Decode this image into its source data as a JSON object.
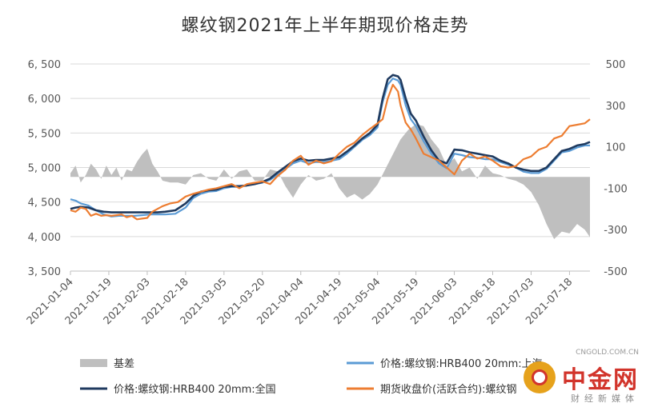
{
  "chart_data": {
    "type": "line",
    "title": "螺纹钢2021年上半年期现价格走势",
    "x_ticks": [
      "2021-01-04",
      "2021-01-19",
      "2021-02-03",
      "2021-02-18",
      "2021-03-05",
      "2021-03-20",
      "2021-04-04",
      "2021-04-19",
      "2021-05-04",
      "2021-05-19",
      "2021-06-03",
      "2021-06-18",
      "2021-07-03",
      "2021-07-18"
    ],
    "y_left": {
      "min": 3500,
      "max": 6500,
      "ticks": [
        "3, 500",
        "4, 000",
        "4, 500",
        "5, 000",
        "5, 500",
        "6, 000",
        "6, 500"
      ]
    },
    "y_right": {
      "min": -500,
      "max": 600,
      "ticks": [
        "-500",
        "-300",
        "-100",
        "100",
        "300",
        "500"
      ]
    },
    "x_range": [
      "2021-01-04",
      "2021-07-26"
    ],
    "series": [
      {
        "name": "基差",
        "kind": "area",
        "axis": "right",
        "color": "#bfbfbf",
        "x": [
          "2021-01-04",
          "2021-01-06",
          "2021-01-08",
          "2021-01-10",
          "2021-01-12",
          "2021-01-14",
          "2021-01-16",
          "2021-01-18",
          "2021-01-20",
          "2021-01-22",
          "2021-01-24",
          "2021-01-26",
          "2021-01-28",
          "2021-01-30",
          "2021-02-01",
          "2021-02-03",
          "2021-02-05",
          "2021-02-07",
          "2021-02-09",
          "2021-02-12",
          "2021-02-15",
          "2021-02-18",
          "2021-02-21",
          "2021-02-24",
          "2021-02-27",
          "2021-03-02",
          "2021-03-05",
          "2021-03-08",
          "2021-03-11",
          "2021-03-14",
          "2021-03-17",
          "2021-03-20",
          "2021-03-23",
          "2021-03-26",
          "2021-03-29",
          "2021-04-01",
          "2021-04-04",
          "2021-04-07",
          "2021-04-10",
          "2021-04-13",
          "2021-04-16",
          "2021-04-19",
          "2021-04-22",
          "2021-04-25",
          "2021-04-28",
          "2021-05-01",
          "2021-05-04",
          "2021-05-07",
          "2021-05-10",
          "2021-05-13",
          "2021-05-16",
          "2021-05-19",
          "2021-05-22",
          "2021-05-25",
          "2021-05-28",
          "2021-05-31",
          "2021-06-03",
          "2021-06-06",
          "2021-06-09",
          "2021-06-12",
          "2021-06-15",
          "2021-06-18",
          "2021-06-21",
          "2021-06-24",
          "2021-06-27",
          "2021-06-30",
          "2021-07-03",
          "2021-07-06",
          "2021-07-09",
          "2021-07-12",
          "2021-07-15",
          "2021-07-18",
          "2021-07-21",
          "2021-07-24",
          "2021-07-26"
        ],
        "values": [
          20,
          60,
          -30,
          10,
          70,
          40,
          -10,
          60,
          10,
          50,
          -20,
          40,
          30,
          80,
          120,
          150,
          70,
          30,
          -20,
          -30,
          -30,
          -40,
          10,
          20,
          -10,
          -20,
          40,
          -10,
          30,
          40,
          -20,
          -20,
          40,
          30,
          -50,
          -110,
          -40,
          10,
          -20,
          -10,
          20,
          -60,
          -110,
          -90,
          -120,
          -90,
          -40,
          40,
          120,
          200,
          250,
          280,
          270,
          200,
          150,
          60,
          100,
          30,
          50,
          -10,
          60,
          20,
          10,
          -10,
          -20,
          -40,
          -80,
          -150,
          -250,
          -330,
          -290,
          -300,
          -250,
          -280,
          -320
        ]
      },
      {
        "name": "价格:螺纹钢:HRB400 20mm:上海",
        "kind": "line",
        "axis": "left",
        "color": "#5b9bd5",
        "x": [
          "2021-01-04",
          "2021-01-06",
          "2021-01-08",
          "2021-01-11",
          "2021-01-14",
          "2021-01-17",
          "2021-01-20",
          "2021-01-23",
          "2021-01-26",
          "2021-01-29",
          "2021-02-01",
          "2021-02-04",
          "2021-02-07",
          "2021-02-10",
          "2021-02-14",
          "2021-02-18",
          "2021-02-21",
          "2021-02-24",
          "2021-02-27",
          "2021-03-02",
          "2021-03-05",
          "2021-03-08",
          "2021-03-11",
          "2021-03-14",
          "2021-03-17",
          "2021-03-20",
          "2021-03-23",
          "2021-03-26",
          "2021-03-29",
          "2021-04-01",
          "2021-04-04",
          "2021-04-07",
          "2021-04-10",
          "2021-04-13",
          "2021-04-16",
          "2021-04-19",
          "2021-04-22",
          "2021-04-25",
          "2021-04-28",
          "2021-05-01",
          "2021-05-04",
          "2021-05-06",
          "2021-05-08",
          "2021-05-10",
          "2021-05-12",
          "2021-05-13",
          "2021-05-15",
          "2021-05-17",
          "2021-05-19",
          "2021-05-22",
          "2021-05-25",
          "2021-05-28",
          "2021-05-31",
          "2021-06-03",
          "2021-06-06",
          "2021-06-09",
          "2021-06-12",
          "2021-06-15",
          "2021-06-18",
          "2021-06-21",
          "2021-06-24",
          "2021-06-27",
          "2021-06-30",
          "2021-07-03",
          "2021-07-06",
          "2021-07-09",
          "2021-07-12",
          "2021-07-15",
          "2021-07-18",
          "2021-07-21",
          "2021-07-24",
          "2021-07-26"
        ],
        "values": [
          4540,
          4520,
          4480,
          4450,
          4380,
          4320,
          4290,
          4300,
          4300,
          4300,
          4310,
          4320,
          4320,
          4320,
          4330,
          4420,
          4560,
          4620,
          4650,
          4660,
          4700,
          4720,
          4720,
          4740,
          4760,
          4780,
          4820,
          4900,
          4980,
          5060,
          5100,
          5060,
          5080,
          5080,
          5100,
          5120,
          5200,
          5300,
          5400,
          5470,
          5580,
          5950,
          6200,
          6290,
          6260,
          6200,
          5900,
          5700,
          5600,
          5380,
          5200,
          5060,
          4990,
          5200,
          5180,
          5150,
          5140,
          5120,
          5120,
          5080,
          5040,
          5000,
          4940,
          4920,
          4920,
          4980,
          5100,
          5220,
          5240,
          5290,
          5320,
          5320
        ]
      },
      {
        "name": "价格:螺纹钢:HRB400 20mm:全国",
        "kind": "line",
        "axis": "left",
        "color": "#1f3a5f",
        "x": [
          "2021-01-04",
          "2021-01-06",
          "2021-01-08",
          "2021-01-11",
          "2021-01-14",
          "2021-01-17",
          "2021-01-20",
          "2021-01-23",
          "2021-01-26",
          "2021-01-29",
          "2021-02-01",
          "2021-02-04",
          "2021-02-07",
          "2021-02-10",
          "2021-02-14",
          "2021-02-18",
          "2021-02-21",
          "2021-02-24",
          "2021-02-27",
          "2021-03-02",
          "2021-03-05",
          "2021-03-08",
          "2021-03-11",
          "2021-03-14",
          "2021-03-17",
          "2021-03-20",
          "2021-03-23",
          "2021-03-26",
          "2021-03-29",
          "2021-04-01",
          "2021-04-04",
          "2021-04-07",
          "2021-04-10",
          "2021-04-13",
          "2021-04-16",
          "2021-04-19",
          "2021-04-22",
          "2021-04-25",
          "2021-04-28",
          "2021-05-01",
          "2021-05-04",
          "2021-05-06",
          "2021-05-08",
          "2021-05-10",
          "2021-05-12",
          "2021-05-13",
          "2021-05-15",
          "2021-05-17",
          "2021-05-19",
          "2021-05-22",
          "2021-05-25",
          "2021-05-28",
          "2021-05-31",
          "2021-06-03",
          "2021-06-06",
          "2021-06-09",
          "2021-06-12",
          "2021-06-15",
          "2021-06-18",
          "2021-06-21",
          "2021-06-24",
          "2021-06-27",
          "2021-06-30",
          "2021-07-03",
          "2021-07-06",
          "2021-07-09",
          "2021-07-12",
          "2021-07-15",
          "2021-07-18",
          "2021-07-21",
          "2021-07-24",
          "2021-07-26"
        ],
        "values": [
          4400,
          4420,
          4430,
          4420,
          4380,
          4360,
          4350,
          4350,
          4350,
          4350,
          4350,
          4350,
          4350,
          4360,
          4380,
          4480,
          4590,
          4650,
          4670,
          4680,
          4720,
          4730,
          4730,
          4740,
          4760,
          4790,
          4840,
          4930,
          5010,
          5090,
          5130,
          5100,
          5110,
          5110,
          5130,
          5150,
          5230,
          5320,
          5420,
          5500,
          5620,
          6000,
          6280,
          6340,
          6320,
          6270,
          6000,
          5780,
          5680,
          5450,
          5250,
          5100,
          5060,
          5260,
          5250,
          5220,
          5200,
          5180,
          5160,
          5100,
          5060,
          5000,
          4970,
          4950,
          4950,
          5000,
          5120,
          5240,
          5270,
          5320,
          5340,
          5370
        ]
      },
      {
        "name": "期货收盘价(活跃合约):螺纹钢",
        "kind": "line",
        "axis": "left",
        "color": "#ed7d31",
        "x": [
          "2021-01-04",
          "2021-01-06",
          "2021-01-08",
          "2021-01-10",
          "2021-01-12",
          "2021-01-14",
          "2021-01-16",
          "2021-01-18",
          "2021-01-20",
          "2021-01-22",
          "2021-01-24",
          "2021-01-26",
          "2021-01-28",
          "2021-01-30",
          "2021-02-01",
          "2021-02-03",
          "2021-02-05",
          "2021-02-07",
          "2021-02-09",
          "2021-02-12",
          "2021-02-15",
          "2021-02-18",
          "2021-02-21",
          "2021-02-24",
          "2021-02-27",
          "2021-03-02",
          "2021-03-05",
          "2021-03-08",
          "2021-03-11",
          "2021-03-14",
          "2021-03-17",
          "2021-03-20",
          "2021-03-23",
          "2021-03-26",
          "2021-03-29",
          "2021-04-01",
          "2021-04-04",
          "2021-04-07",
          "2021-04-10",
          "2021-04-13",
          "2021-04-16",
          "2021-04-19",
          "2021-04-22",
          "2021-04-25",
          "2021-04-28",
          "2021-05-01",
          "2021-05-04",
          "2021-05-06",
          "2021-05-08",
          "2021-05-10",
          "2021-05-12",
          "2021-05-13",
          "2021-05-15",
          "2021-05-17",
          "2021-05-19",
          "2021-05-22",
          "2021-05-25",
          "2021-05-28",
          "2021-05-31",
          "2021-06-03",
          "2021-06-06",
          "2021-06-09",
          "2021-06-12",
          "2021-06-15",
          "2021-06-18",
          "2021-06-21",
          "2021-06-24",
          "2021-06-27",
          "2021-06-30",
          "2021-07-03",
          "2021-07-06",
          "2021-07-09",
          "2021-07-12",
          "2021-07-15",
          "2021-07-18",
          "2021-07-21",
          "2021-07-24",
          "2021-07-26"
        ],
        "values": [
          4380,
          4360,
          4420,
          4400,
          4300,
          4330,
          4300,
          4310,
          4300,
          4310,
          4320,
          4280,
          4300,
          4250,
          4260,
          4270,
          4360,
          4400,
          4440,
          4480,
          4500,
          4580,
          4620,
          4650,
          4680,
          4700,
          4730,
          4760,
          4700,
          4760,
          4780,
          4800,
          4760,
          4880,
          4970,
          5100,
          5170,
          5040,
          5100,
          5060,
          5090,
          5200,
          5300,
          5360,
          5470,
          5560,
          5640,
          5700,
          6000,
          6200,
          6100,
          5900,
          5650,
          5550,
          5420,
          5200,
          5150,
          5100,
          5000,
          4900,
          5100,
          5200,
          5130,
          5160,
          5100,
          5020,
          5000,
          5020,
          5120,
          5160,
          5260,
          5300,
          5420,
          5460,
          5600,
          5620,
          5640,
          5700
        ]
      }
    ],
    "legend": [
      "基差",
      "价格:螺纹钢:HRB400 20mm:上海",
      "价格:螺纹钢:HRB400 20mm:全国",
      "期货收盘价(活跃合约):螺纹钢"
    ],
    "legend_placement": "bottom",
    "grid": "horizontal",
    "watermark": {
      "brand": "中金网",
      "site": "CNGOLD.COM.CN",
      "sub": "财经新媒体"
    }
  }
}
